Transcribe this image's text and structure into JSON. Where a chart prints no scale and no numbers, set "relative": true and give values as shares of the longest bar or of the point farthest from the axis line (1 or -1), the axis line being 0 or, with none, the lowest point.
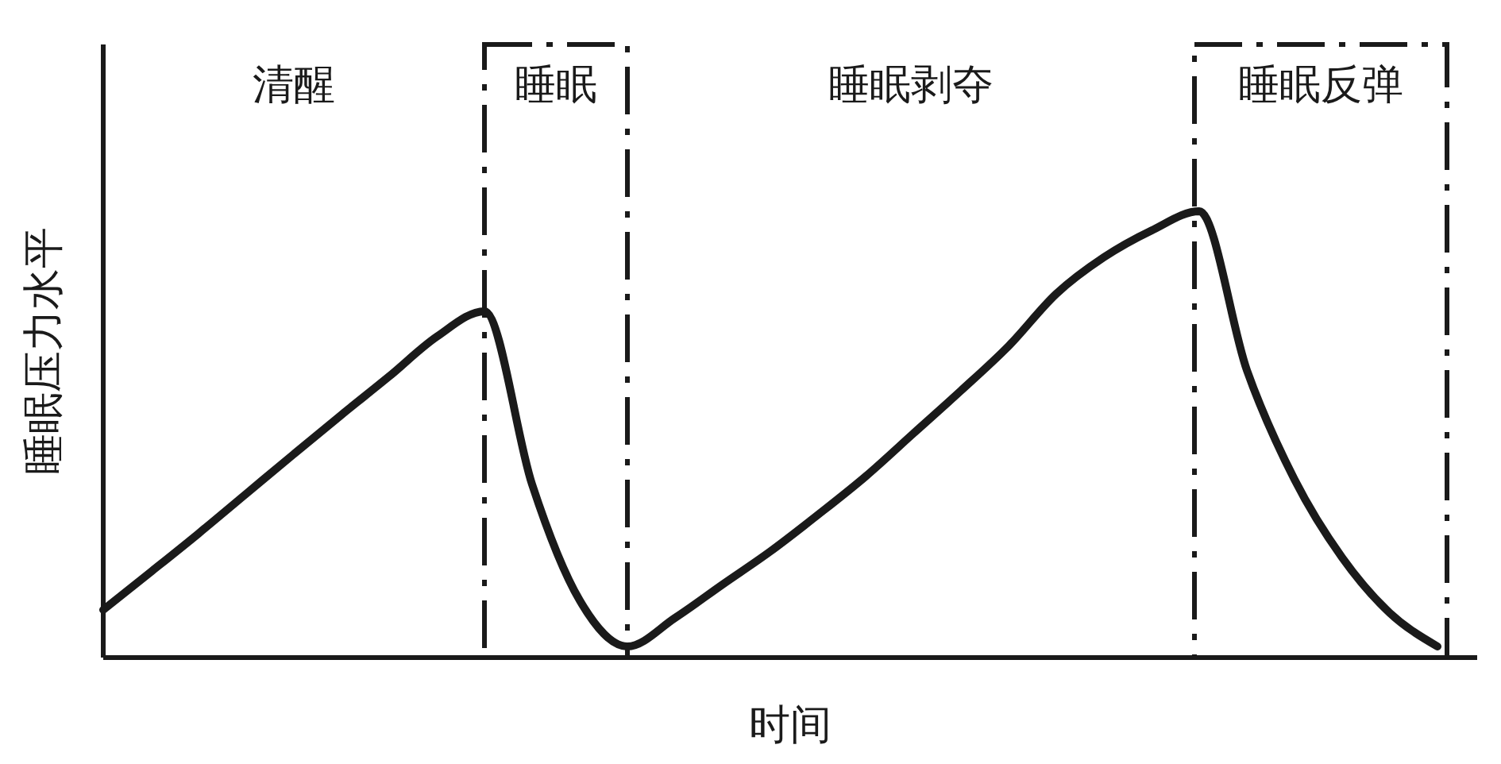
{
  "chart_data": {
    "type": "line",
    "relative": true,
    "xlabel": "时间",
    "ylabel": "睡眠压力水平",
    "line_style": "solid",
    "categories": [
      null,
      null,
      null,
      null,
      null,
      null,
      null,
      null,
      null,
      null,
      null,
      null,
      null,
      null,
      null,
      null,
      null,
      null,
      null,
      null,
      null,
      null,
      null,
      null,
      null,
      null,
      null,
      null,
      null
    ],
    "series": [
      {
        "color": "#1a1a1a",
        "values": [
          0.107,
          0.192,
          0.278,
          0.367,
          0.456,
          0.544,
          0.63,
          0.719,
          0.776,
          0.388,
          0.128,
          0.025,
          0.089,
          0.164,
          0.238,
          0.32,
          0.406,
          0.502,
          0.598,
          0.698,
          0.815,
          0.897,
          0.957,
          1,
          0.644,
          0.399,
          0.224,
          0.1,
          0.025
        ]
      }
    ],
    "annotations": [
      "清醒",
      "睡眠",
      "睡眠剥夺",
      "睡眠反弹"
    ]
  }
}
